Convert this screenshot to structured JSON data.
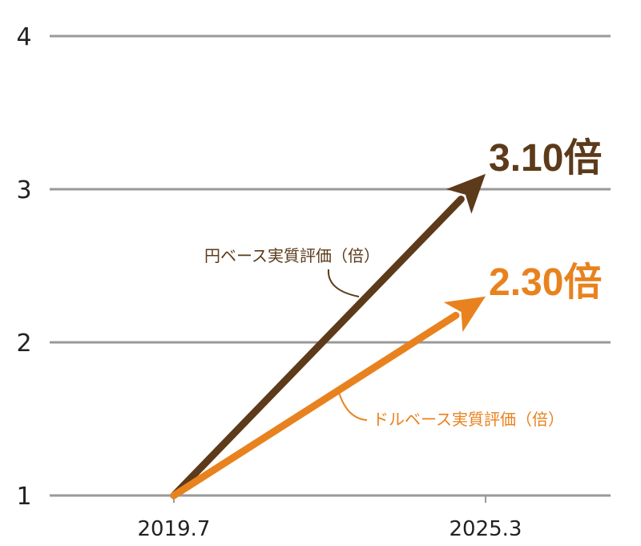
{
  "chart_data": {
    "type": "line",
    "title": "",
    "xlabel": "",
    "ylabel": "",
    "categories": [
      "2019.7",
      "2025.3"
    ],
    "ylim": [
      1,
      4
    ],
    "yticks": [
      "1",
      "2",
      "3",
      "4"
    ],
    "grid": true,
    "series": [
      {
        "name": "円ベース実質評価（倍）",
        "values": [
          1,
          3.1
        ],
        "end_label": "3.10倍",
        "color": "#5c3a1a"
      },
      {
        "name": "ドルベース実質評価（倍）",
        "values": [
          1,
          2.3
        ],
        "end_label": "2.30倍",
        "color": "#e8821e"
      }
    ]
  }
}
